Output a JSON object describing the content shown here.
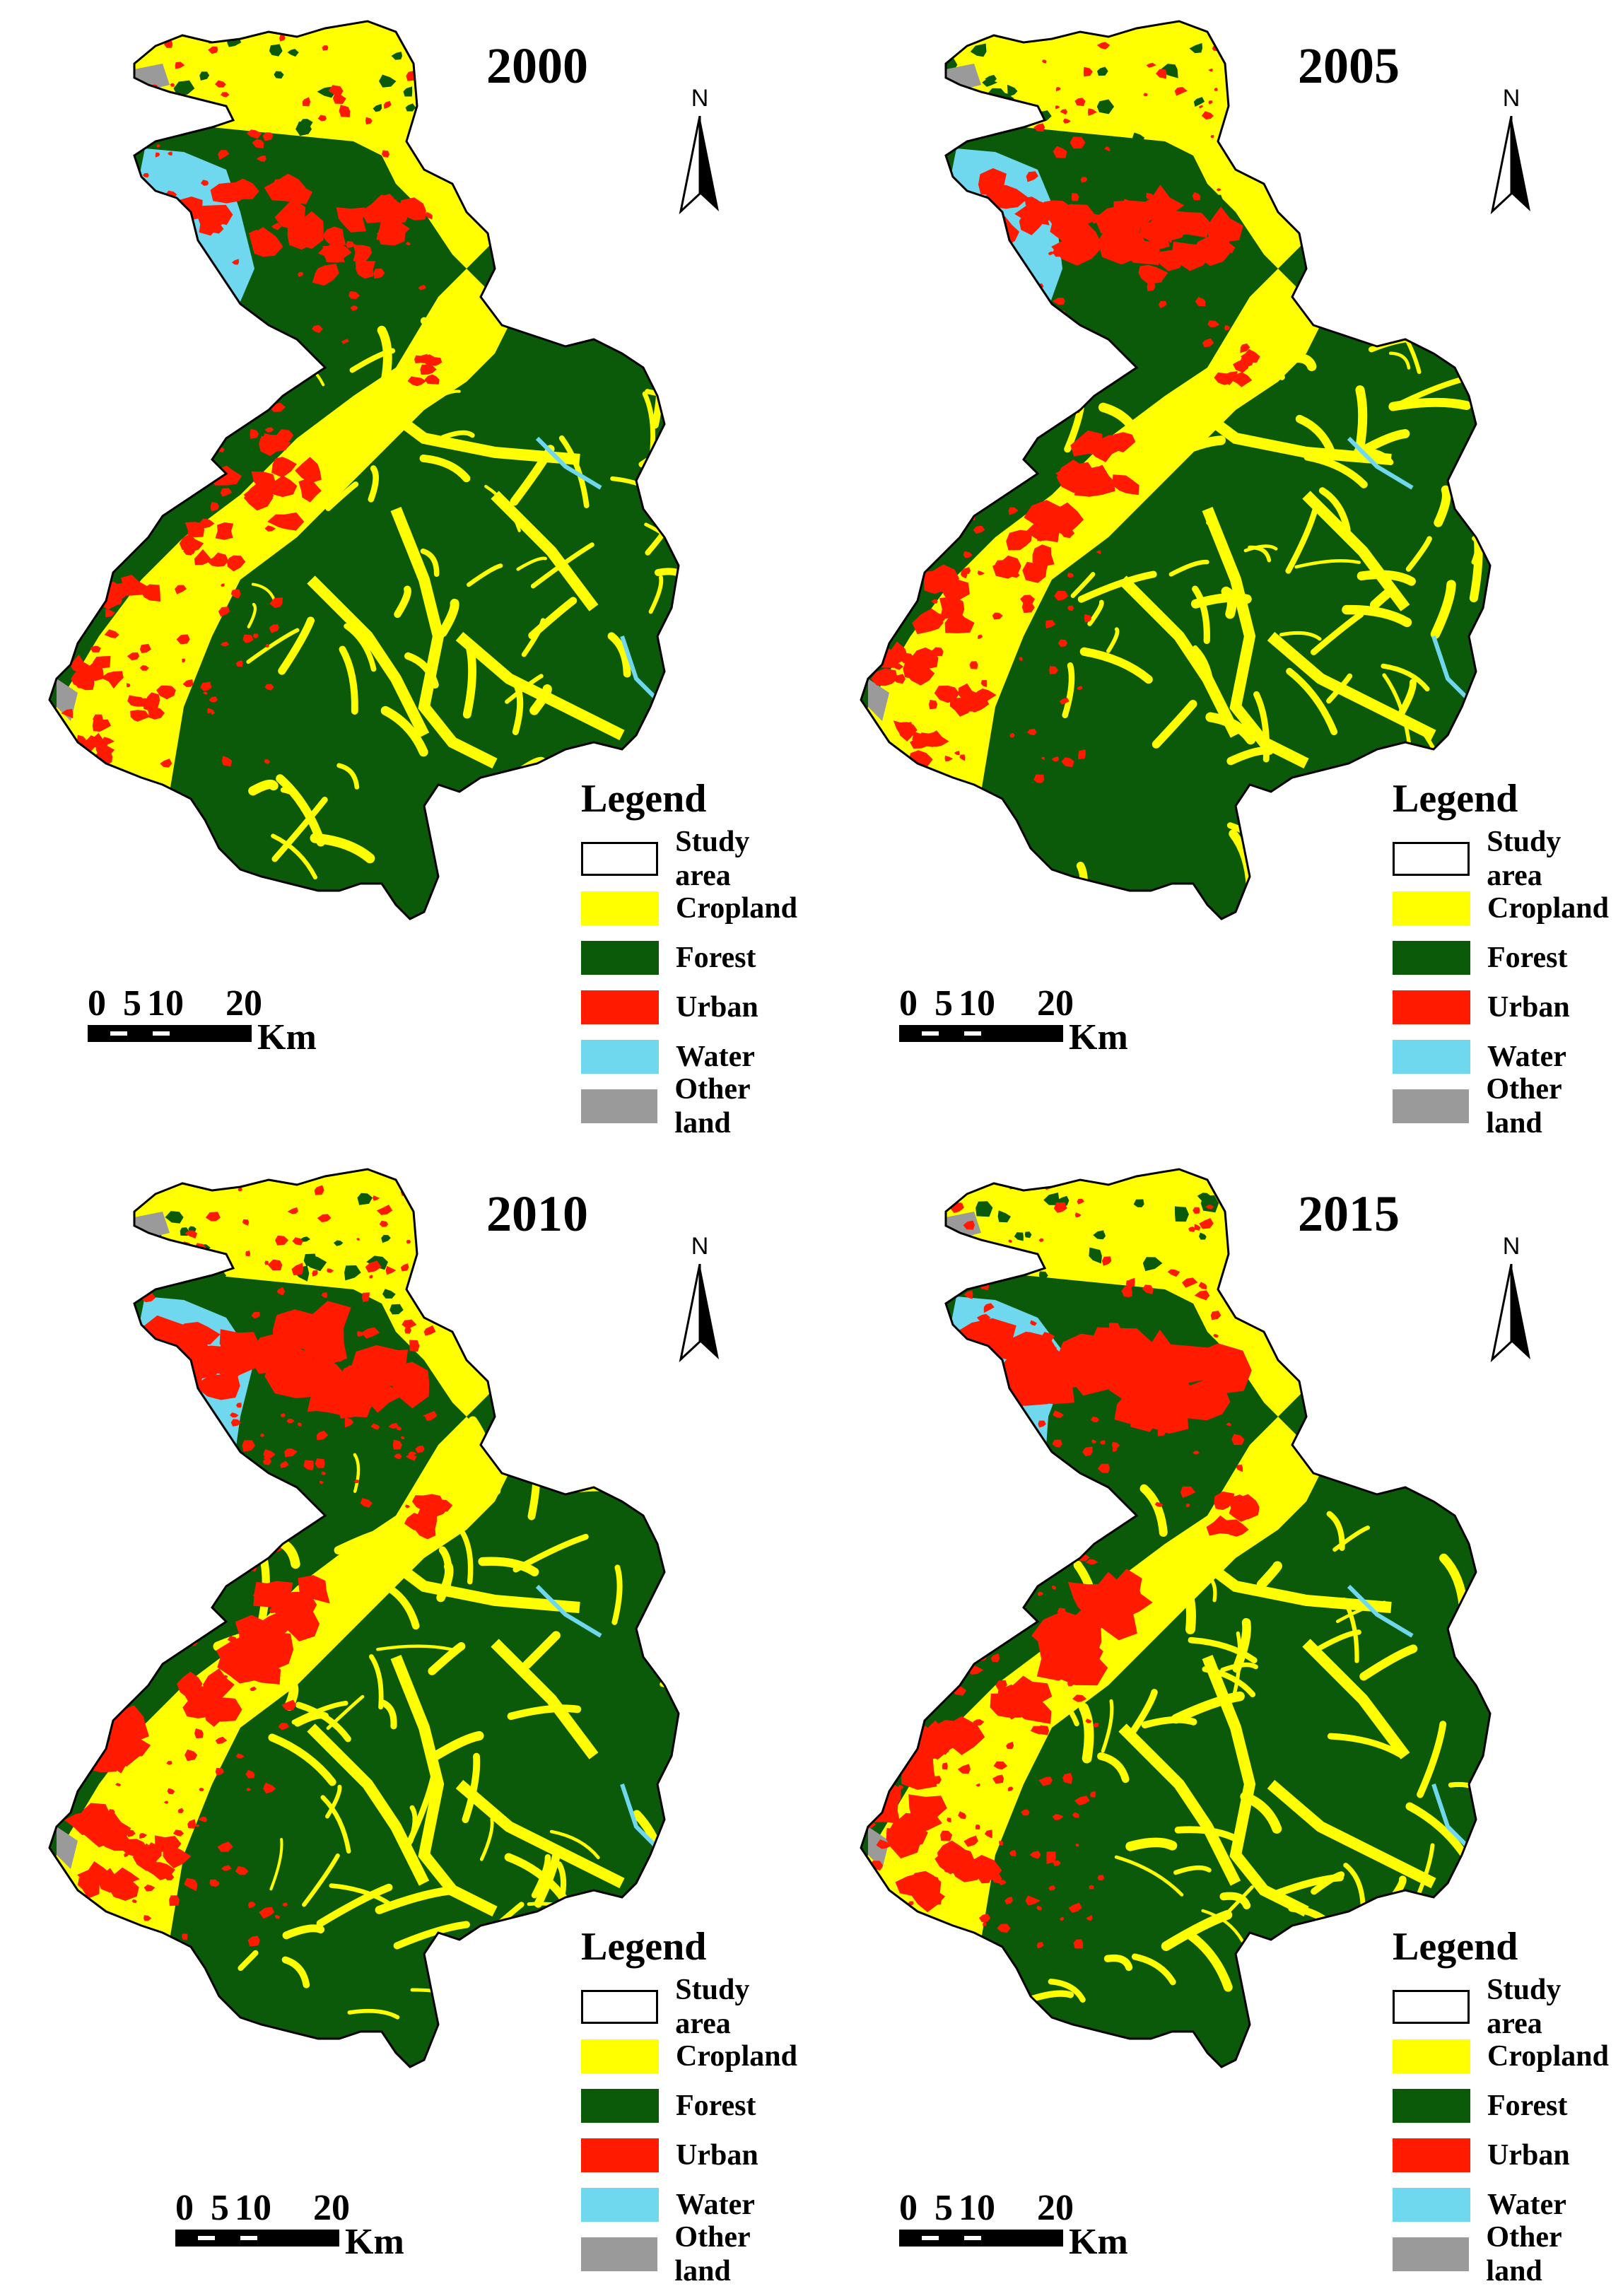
{
  "colors": {
    "cropland": "#ffff00",
    "forest": "#0a5a0a",
    "urban": "#ff1a00",
    "water": "#6fd8ee",
    "other": "#9a9a9a",
    "study_area": "#ffffff"
  },
  "legend": {
    "title": "Legend",
    "items": [
      {
        "label": "Study area",
        "color": "#ffffff"
      },
      {
        "label": "Cropland",
        "color": "#ffff00"
      },
      {
        "label": "Forest",
        "color": "#0a5a0a"
      },
      {
        "label": "Urban",
        "color": "#ff1a00"
      },
      {
        "label": "Water",
        "color": "#6fd8ee"
      },
      {
        "label": "Other land",
        "color": "#9a9a9a"
      }
    ]
  },
  "north_arrow": {
    "label": "N"
  },
  "scale_bar": {
    "ticks": [
      "0",
      "5",
      "10",
      "20"
    ],
    "unit": "Km"
  },
  "panels": [
    {
      "year": "2000"
    },
    {
      "year": "2005"
    },
    {
      "year": "2010"
    },
    {
      "year": "2015"
    }
  ]
}
